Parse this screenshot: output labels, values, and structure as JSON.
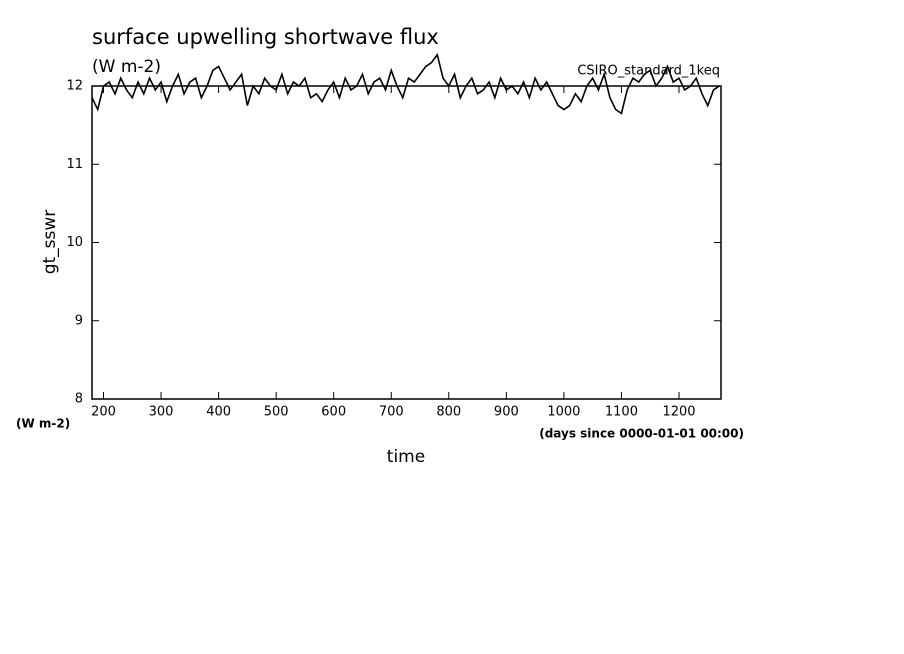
{
  "chart_data": {
    "type": "line",
    "title": "surface upwelling shortwave flux",
    "subtitle": "(W m-2)",
    "annotation": "CSIRO_standard_1keq",
    "ylabel": "gt_sswr",
    "yunits": "(W m-2)",
    "xlabel": "time",
    "xunits": "(days since 0000-01-01 00:00)",
    "x": [
      180,
      190,
      200,
      210,
      220,
      230,
      240,
      250,
      260,
      270,
      280,
      290,
      300,
      310,
      320,
      330,
      340,
      350,
      360,
      370,
      380,
      390,
      400,
      410,
      420,
      430,
      440,
      450,
      460,
      470,
      480,
      490,
      500,
      510,
      520,
      530,
      540,
      550,
      560,
      570,
      580,
      590,
      600,
      610,
      620,
      630,
      640,
      650,
      660,
      670,
      680,
      690,
      700,
      710,
      720,
      730,
      740,
      750,
      760,
      770,
      780,
      790,
      800,
      810,
      820,
      830,
      840,
      850,
      860,
      870,
      880,
      890,
      900,
      910,
      920,
      930,
      940,
      950,
      960,
      970,
      980,
      990,
      1000,
      1010,
      1020,
      1030,
      1040,
      1050,
      1060,
      1070,
      1080,
      1090,
      1100,
      1110,
      1120,
      1130,
      1140,
      1150,
      1160,
      1170,
      1180,
      1190,
      1200,
      1210,
      1220,
      1230,
      1240,
      1250,
      1260,
      1270
    ],
    "series": [
      {
        "name": "gt_sswr",
        "color": "#000000",
        "values": [
          11.85,
          11.7,
          12.0,
          12.05,
          11.9,
          12.1,
          11.95,
          11.85,
          12.05,
          11.9,
          12.1,
          11.95,
          12.05,
          11.8,
          12.0,
          12.15,
          11.9,
          12.05,
          12.1,
          11.85,
          12.0,
          12.2,
          12.25,
          12.1,
          11.95,
          12.05,
          12.15,
          11.75,
          12.0,
          11.9,
          12.1,
          12.0,
          11.95,
          12.15,
          11.9,
          12.05,
          12.0,
          12.1,
          11.85,
          11.9,
          11.8,
          11.95,
          12.05,
          11.85,
          12.1,
          11.95,
          12.0,
          12.15,
          11.9,
          12.05,
          12.1,
          11.95,
          12.2,
          12.0,
          11.85,
          12.1,
          12.05,
          12.15,
          12.25,
          12.3,
          12.4,
          12.1,
          12.0,
          12.15,
          11.85,
          12.0,
          12.1,
          11.9,
          11.95,
          12.05,
          11.85,
          12.1,
          11.95,
          12.0,
          11.9,
          12.05,
          11.85,
          12.1,
          11.95,
          12.05,
          11.9,
          11.75,
          11.7,
          11.75,
          11.9,
          11.8,
          12.0,
          12.1,
          11.95,
          12.15,
          11.85,
          11.7,
          11.65,
          11.95,
          12.1,
          12.05,
          12.15,
          12.2,
          12.0,
          12.1,
          12.25,
          12.05,
          12.1,
          11.95,
          12.0,
          12.1,
          11.9,
          11.75,
          11.95,
          12.0
        ]
      }
    ],
    "xlim": [
      180,
      1273
    ],
    "ylim": [
      8,
      12
    ],
    "xticks": [
      200,
      300,
      400,
      500,
      600,
      700,
      800,
      900,
      1000,
      1100,
      1200
    ],
    "yticks": [
      8,
      9,
      10,
      11,
      12
    ]
  }
}
